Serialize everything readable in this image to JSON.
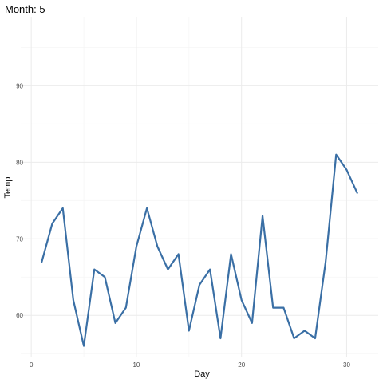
{
  "chart_data": {
    "type": "line",
    "title": "Month: 5",
    "xlabel": "Day",
    "ylabel": "Temp",
    "x": [
      1,
      2,
      3,
      4,
      5,
      6,
      7,
      8,
      9,
      10,
      11,
      12,
      13,
      14,
      15,
      16,
      17,
      18,
      19,
      20,
      21,
      22,
      23,
      24,
      25,
      26,
      27,
      28,
      29,
      30,
      31
    ],
    "series": [
      {
        "values": [
          67,
          72,
          74,
          62,
          56,
          66,
          65,
          59,
          61,
          69,
          74,
          69,
          66,
          68,
          58,
          64,
          66,
          57,
          68,
          62,
          59,
          73,
          61,
          61,
          57,
          58,
          57,
          67,
          81,
          79,
          76
        ],
        "color": "#3a6fa5"
      }
    ],
    "xlim": [
      -1,
      33
    ],
    "ylim": [
      54.5,
      99
    ],
    "xticks": [
      0,
      10,
      20,
      30
    ],
    "xtick_labels": [
      "0",
      "10",
      "20",
      "30"
    ],
    "yticks": [
      60,
      70,
      80,
      90
    ],
    "ytick_labels": [
      "60",
      "70",
      "80",
      "90"
    ],
    "grid": true
  }
}
